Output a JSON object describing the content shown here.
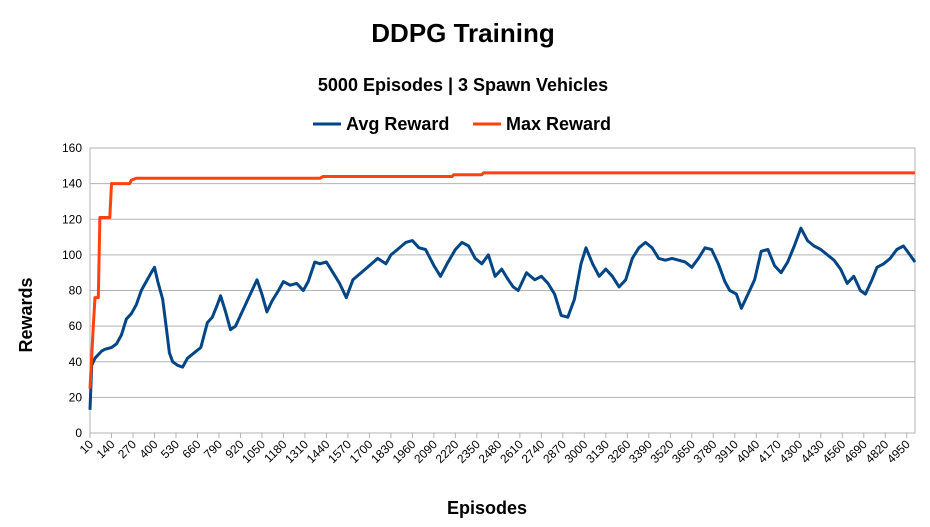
{
  "chart_data": {
    "type": "line",
    "title": "DDPG Training",
    "subtitle": "5000 Episodes | 3 Spawn Vehicles",
    "x_label": "Episodes",
    "y_label": "Rewards",
    "xlim": [
      10,
      5000
    ],
    "xticks": [
      10,
      140,
      270,
      400,
      530,
      660,
      790,
      920,
      1050,
      1180,
      1310,
      1440,
      1570,
      1700,
      1830,
      1960,
      2090,
      2220,
      2350,
      2480,
      2610,
      2740,
      2870,
      3000,
      3130,
      3260,
      3390,
      3520,
      3650,
      3780,
      3910,
      4040,
      4170,
      4300,
      4430,
      4560,
      4690,
      4820,
      4950
    ],
    "ylim": [
      0,
      160
    ],
    "yticks": [
      0,
      20,
      40,
      60,
      80,
      100,
      120,
      140,
      160
    ],
    "grid": true,
    "legend": "top",
    "series": [
      {
        "name": "Avg Reward",
        "color": "#004586",
        "x": [
          10,
          20,
          40,
          60,
          80,
          100,
          140,
          170,
          200,
          230,
          260,
          290,
          320,
          350,
          380,
          400,
          420,
          450,
          470,
          490,
          510,
          540,
          570,
          600,
          640,
          680,
          720,
          750,
          780,
          800,
          830,
          860,
          890,
          920,
          950,
          990,
          1020,
          1050,
          1080,
          1110,
          1150,
          1180,
          1220,
          1260,
          1300,
          1330,
          1370,
          1400,
          1440,
          1480,
          1520,
          1560,
          1600,
          1650,
          1700,
          1750,
          1800,
          1830,
          1870,
          1920,
          1960,
          2000,
          2040,
          2090,
          2130,
          2170,
          2220,
          2260,
          2300,
          2340,
          2380,
          2420,
          2460,
          2500,
          2540,
          2570,
          2600,
          2650,
          2700,
          2740,
          2780,
          2820,
          2860,
          2900,
          2940,
          2980,
          3010,
          3050,
          3090,
          3130,
          3170,
          3210,
          3250,
          3290,
          3330,
          3370,
          3410,
          3450,
          3490,
          3530,
          3570,
          3610,
          3650,
          3690,
          3730,
          3770,
          3810,
          3850,
          3880,
          3920,
          3950,
          3990,
          4030,
          4070,
          4110,
          4150,
          4190,
          4230,
          4270,
          4310,
          4350,
          4390,
          4430,
          4470,
          4510,
          4550,
          4590,
          4630,
          4670,
          4700,
          4740,
          4770,
          4810,
          4850,
          4890,
          4930,
          4970,
          5000
        ],
        "values": [
          13,
          38,
          42,
          44,
          46,
          47,
          48,
          50,
          55,
          64,
          67,
          72,
          80,
          85,
          90,
          93,
          85,
          75,
          60,
          45,
          40,
          38,
          37,
          42,
          45,
          48,
          62,
          65,
          72,
          77,
          68,
          58,
          60,
          66,
          72,
          80,
          86,
          78,
          68,
          74,
          80,
          85,
          83,
          84,
          80,
          85,
          96,
          95,
          96,
          90,
          84,
          76,
          86,
          90,
          94,
          98,
          95,
          100,
          103,
          107,
          108,
          104,
          103,
          94,
          88,
          95,
          103,
          107,
          105,
          98,
          95,
          100,
          88,
          92,
          86,
          82,
          80,
          90,
          86,
          88,
          84,
          78,
          66,
          65,
          75,
          95,
          104,
          95,
          88,
          92,
          88,
          82,
          86,
          98,
          104,
          107,
          104,
          98,
          97,
          98,
          97,
          96,
          93,
          98,
          104,
          103,
          95,
          85,
          80,
          78,
          70,
          78,
          86,
          102,
          103,
          94,
          90,
          96,
          105,
          115,
          108,
          105,
          103,
          100,
          97,
          92,
          84,
          88,
          80,
          78,
          86,
          93,
          95,
          98,
          103,
          105,
          100,
          96
        ]
      },
      {
        "name": "Max Reward",
        "color": "#ff420e",
        "x": [
          10,
          30,
          40,
          60,
          70,
          130,
          140,
          250,
          260,
          290,
          1400,
          1420,
          2200,
          2210,
          2380,
          2390,
          5000
        ],
        "values": [
          25,
          60,
          76,
          76,
          121,
          121,
          140,
          140,
          142,
          143,
          143,
          144,
          144,
          145,
          145,
          146,
          146
        ]
      }
    ]
  }
}
